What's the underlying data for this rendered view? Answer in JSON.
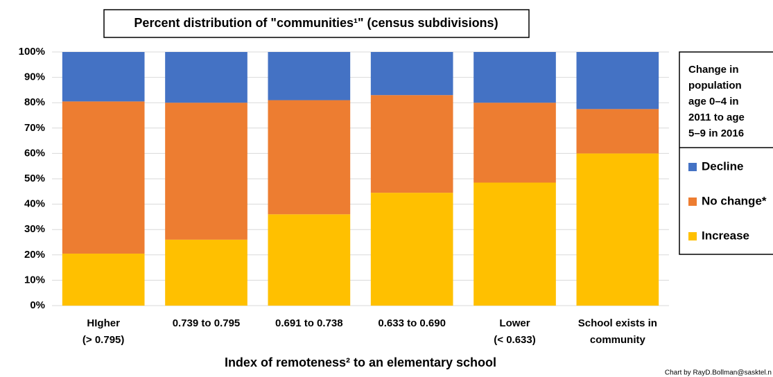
{
  "chart_data": {
    "type": "stacked_bar",
    "title": "Percent distribution of \"communities¹\" (census subdivisions)",
    "x_label": "Index of remoteness² to an elementary school",
    "legend_title": [
      "Change in",
      "population",
      "age 0–4 in",
      "2011 to age",
      "5–9 in 2016"
    ],
    "credit": "Chart by RayD.Bollman@sasktel.n",
    "categories": [
      [
        "HIgher",
        "(> 0.795)"
      ],
      [
        "0.739 to 0.795"
      ],
      [
        "0.691 to 0.738"
      ],
      [
        "0.633 to 0.690"
      ],
      [
        "Lower",
        "(< 0.633)"
      ],
      [
        "School exists in",
        "community"
      ]
    ],
    "series": [
      {
        "name": "Increase",
        "color": "#ffc000",
        "values": [
          20.5,
          26,
          36,
          44.5,
          48.5,
          60
        ]
      },
      {
        "name": "No change*",
        "color": "#ed7d31",
        "values": [
          60,
          54,
          45,
          38.5,
          31.5,
          17.5
        ]
      },
      {
        "name": "Decline",
        "color": "#4472c4",
        "values": [
          19.5,
          20,
          19,
          17,
          20,
          22.5
        ]
      }
    ],
    "ylim": [
      0,
      100
    ],
    "yticks": [
      {
        "value": 0,
        "label": "0%"
      },
      {
        "value": 10,
        "label": "10%"
      },
      {
        "value": 20,
        "label": "20%"
      },
      {
        "value": 30,
        "label": "30%"
      },
      {
        "value": 40,
        "label": "40%"
      },
      {
        "value": 50,
        "label": "50%"
      },
      {
        "value": 60,
        "label": "60%"
      },
      {
        "value": 70,
        "label": "70%"
      },
      {
        "value": 80,
        "label": "80%"
      },
      {
        "value": 90,
        "label": "90%"
      },
      {
        "value": 100,
        "label": "100%"
      }
    ],
    "grid": true,
    "legend": "right"
  }
}
